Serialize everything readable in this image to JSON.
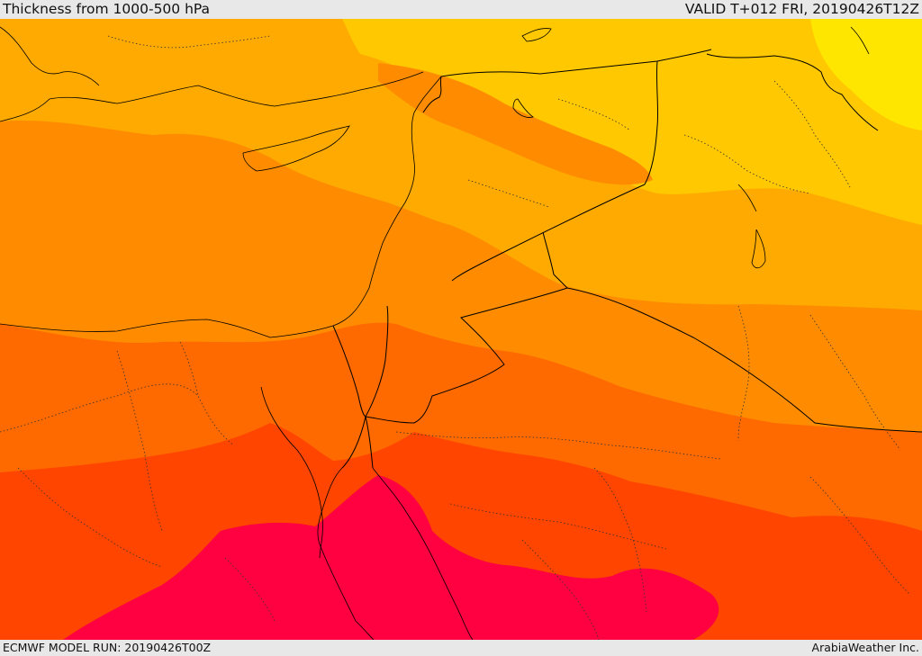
{
  "header": {
    "title": "Thickness from 1000-500 hPa",
    "valid": "VALID T+012 FRI, 20190426T12Z"
  },
  "footer": {
    "model_run": "ECMWF MODEL RUN: 20190426T00Z",
    "credit": "ArabiaWeather Inc."
  },
  "map": {
    "field": "1000-500 hPa thickness",
    "palette": [
      "#ffe600",
      "#ffc800",
      "#ffaa00",
      "#ff8c00",
      "#ff6a00",
      "#ff4500",
      "#ff0040"
    ],
    "border_color": "#000000"
  }
}
